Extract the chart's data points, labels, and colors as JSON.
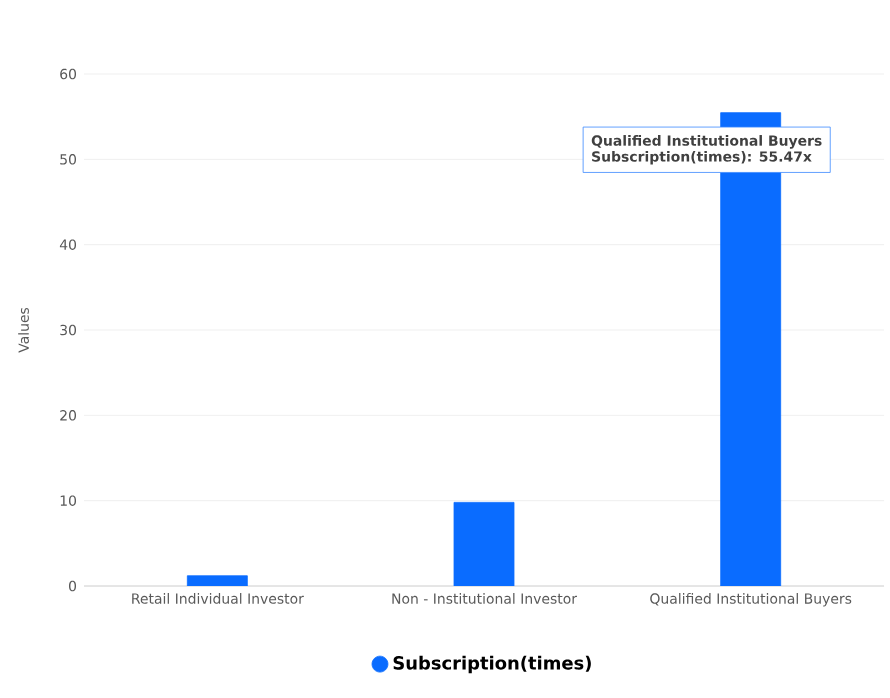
{
  "chart_data": {
    "type": "bar",
    "ylabel": "Values",
    "categories": [
      "Retail Individual Investor",
      "Non - Institutional Investor",
      "Qualified Institutional Buyers"
    ],
    "series": [
      {
        "name": "Subscription(times)",
        "color": "#0a6cff",
        "values": [
          1.2,
          9.8,
          55.47
        ]
      }
    ],
    "ylim": [
      0,
      60
    ],
    "yticks": [
      0,
      10,
      20,
      30,
      40,
      50,
      60
    ],
    "grid": "y",
    "legend": "bottom",
    "annotations": [
      "Qualified Institutional Buyers",
      {
        "text": "Subscription(times):  55.47x",
        "x": "Qualified Institutional Buyers",
        "y": 55.47
      }
    ]
  }
}
